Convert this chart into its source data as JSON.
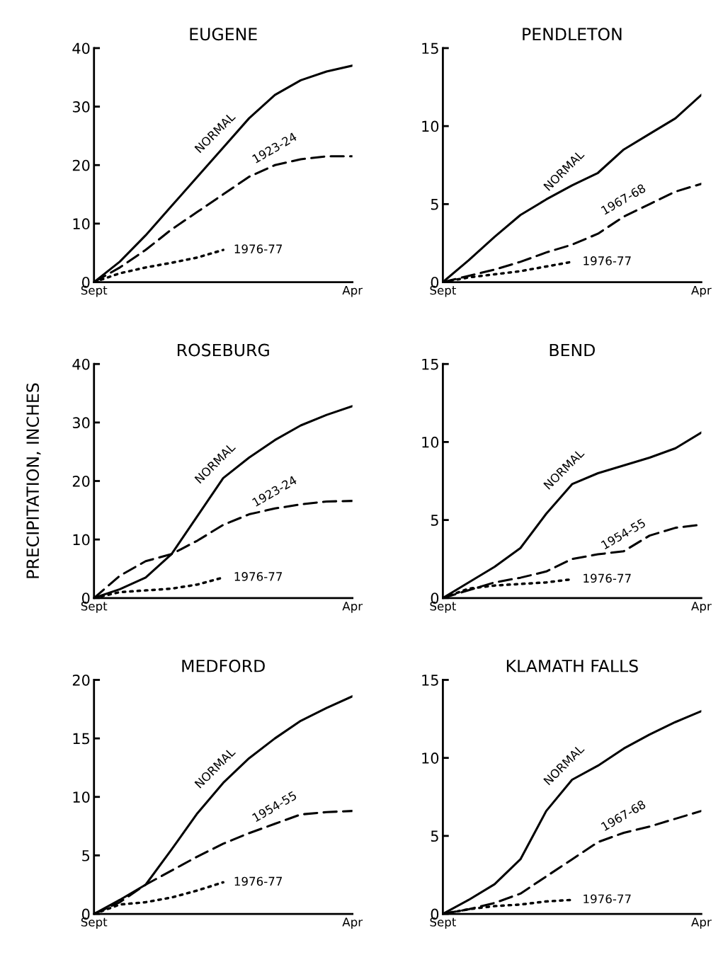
{
  "chart_data": [
    {
      "type": "line",
      "title": "EUGENE",
      "categories": [
        "Sept",
        null,
        null,
        null,
        null,
        null,
        null,
        null,
        null,
        null,
        "Apr"
      ],
      "ylim": [
        0,
        40
      ],
      "yticks": [
        0,
        10,
        20,
        30,
        40
      ],
      "grid": false,
      "legend": false,
      "series": [
        {
          "name": "NORMAL",
          "color": "#000000",
          "line_style": "solid",
          "values": [
            0,
            3.5,
            8,
            13,
            18,
            23,
            28,
            32,
            34.5,
            36,
            37
          ]
        },
        {
          "name": "1923-24",
          "color": "#000000",
          "line_style": "dashed",
          "values": [
            0,
            2.5,
            5.5,
            9,
            12,
            15,
            18,
            20,
            21,
            21.5,
            21.5
          ]
        },
        {
          "name": "1976-77",
          "color": "#000000",
          "line_style": "dotted",
          "values": [
            0,
            1.5,
            2.5,
            3.3,
            4.2,
            5.5,
            null,
            null,
            null,
            null,
            null
          ]
        }
      ]
    },
    {
      "type": "line",
      "title": "PENDLETON",
      "categories": [
        "Sept",
        null,
        null,
        null,
        null,
        null,
        null,
        null,
        null,
        null,
        "Apr"
      ],
      "ylim": [
        0,
        15
      ],
      "yticks": [
        0,
        5,
        10,
        15
      ],
      "grid": false,
      "legend": false,
      "series": [
        {
          "name": "NORMAL",
          "color": "#000000",
          "line_style": "solid",
          "values": [
            0,
            1.4,
            2.9,
            4.3,
            5.3,
            6.2,
            7.0,
            8.5,
            9.5,
            10.5,
            12
          ]
        },
        {
          "name": "1967-68",
          "color": "#000000",
          "line_style": "dashed",
          "values": [
            0,
            0.4,
            0.8,
            1.3,
            1.9,
            2.4,
            3.1,
            4.2,
            5.0,
            5.8,
            6.3
          ]
        },
        {
          "name": "1976-77",
          "color": "#000000",
          "line_style": "dotted",
          "values": [
            0,
            0.3,
            0.5,
            0.7,
            1.0,
            1.3,
            null,
            null,
            null,
            null,
            null
          ]
        }
      ]
    },
    {
      "type": "line",
      "title": "ROSEBURG",
      "ylabel": "PRECIPITATION, INCHES",
      "categories": [
        "Sept",
        null,
        null,
        null,
        null,
        null,
        null,
        null,
        null,
        null,
        "Apr"
      ],
      "ylim": [
        0,
        40
      ],
      "yticks": [
        0,
        10,
        20,
        30,
        40
      ],
      "grid": false,
      "legend": false,
      "series": [
        {
          "name": "NORMAL",
          "color": "#000000",
          "line_style": "solid",
          "values": [
            0,
            1.5,
            3.5,
            7.5,
            14,
            20.5,
            24,
            27,
            29.5,
            31.3,
            32.8
          ]
        },
        {
          "name": "1923-24",
          "color": "#000000",
          "line_style": "dashed",
          "values": [
            0,
            3.8,
            6.3,
            7.5,
            9.8,
            12.5,
            14.3,
            15.3,
            16,
            16.5,
            16.6
          ]
        },
        {
          "name": "1976-77",
          "color": "#000000",
          "line_style": "dotted",
          "values": [
            0,
            1.0,
            1.3,
            1.6,
            2.3,
            3.5,
            null,
            null,
            null,
            null,
            null
          ]
        }
      ]
    },
    {
      "type": "line",
      "title": "BEND",
      "categories": [
        "Sept",
        null,
        null,
        null,
        null,
        null,
        null,
        null,
        null,
        null,
        "Apr"
      ],
      "ylim": [
        0,
        15
      ],
      "yticks": [
        0,
        5,
        10,
        15
      ],
      "grid": false,
      "legend": false,
      "series": [
        {
          "name": "NORMAL",
          "color": "#000000",
          "line_style": "solid",
          "values": [
            0,
            1.0,
            2.0,
            3.2,
            5.4,
            7.3,
            8.0,
            8.5,
            9.0,
            9.6,
            10.6
          ]
        },
        {
          "name": "1954-55",
          "color": "#000000",
          "line_style": "dashed",
          "values": [
            0,
            0.5,
            1.0,
            1.3,
            1.7,
            2.5,
            2.8,
            3.0,
            4.0,
            4.5,
            4.7
          ]
        },
        {
          "name": "1976-77",
          "color": "#000000",
          "line_style": "dotted",
          "values": [
            0,
            0.6,
            0.8,
            0.9,
            1.0,
            1.2,
            null,
            null,
            null,
            null,
            null
          ]
        }
      ]
    },
    {
      "type": "line",
      "title": "MEDFORD",
      "categories": [
        "Sept",
        null,
        null,
        null,
        null,
        null,
        null,
        null,
        null,
        null,
        "Apr"
      ],
      "ylim": [
        0,
        20
      ],
      "yticks": [
        0,
        5,
        10,
        15,
        20
      ],
      "grid": false,
      "legend": false,
      "series": [
        {
          "name": "NORMAL",
          "color": "#000000",
          "line_style": "solid",
          "values": [
            0,
            1.2,
            2.5,
            5.5,
            8.6,
            11.2,
            13.3,
            15,
            16.5,
            17.6,
            18.6
          ]
        },
        {
          "name": "1954-55",
          "color": "#000000",
          "line_style": "dashed",
          "values": [
            0,
            1.0,
            2.5,
            3.7,
            4.9,
            6.0,
            6.9,
            7.7,
            8.5,
            8.7,
            8.8
          ]
        },
        {
          "name": "1976-77",
          "color": "#000000",
          "line_style": "dotted",
          "values": [
            0,
            0.8,
            1.0,
            1.4,
            2.0,
            2.7,
            null,
            null,
            null,
            null,
            null
          ]
        }
      ]
    },
    {
      "type": "line",
      "title": "KLAMATH FALLS",
      "categories": [
        "Sept",
        null,
        null,
        null,
        null,
        null,
        null,
        null,
        null,
        null,
        "Apr"
      ],
      "ylim": [
        0,
        15
      ],
      "yticks": [
        0,
        5,
        10,
        15
      ],
      "grid": false,
      "legend": false,
      "series": [
        {
          "name": "NORMAL",
          "color": "#000000",
          "line_style": "solid",
          "values": [
            0,
            0.9,
            1.9,
            3.5,
            6.6,
            8.6,
            9.5,
            10.6,
            11.5,
            12.3,
            13
          ]
        },
        {
          "name": "1967-68",
          "color": "#000000",
          "line_style": "dashed",
          "values": [
            0,
            0.3,
            0.7,
            1.3,
            2.4,
            3.5,
            4.6,
            5.2,
            5.6,
            6.1,
            6.6
          ]
        },
        {
          "name": "1976-77",
          "color": "#000000",
          "line_style": "dotted",
          "values": [
            0,
            0.3,
            0.5,
            0.6,
            0.8,
            0.9,
            null,
            null,
            null,
            null,
            null
          ]
        }
      ]
    }
  ]
}
